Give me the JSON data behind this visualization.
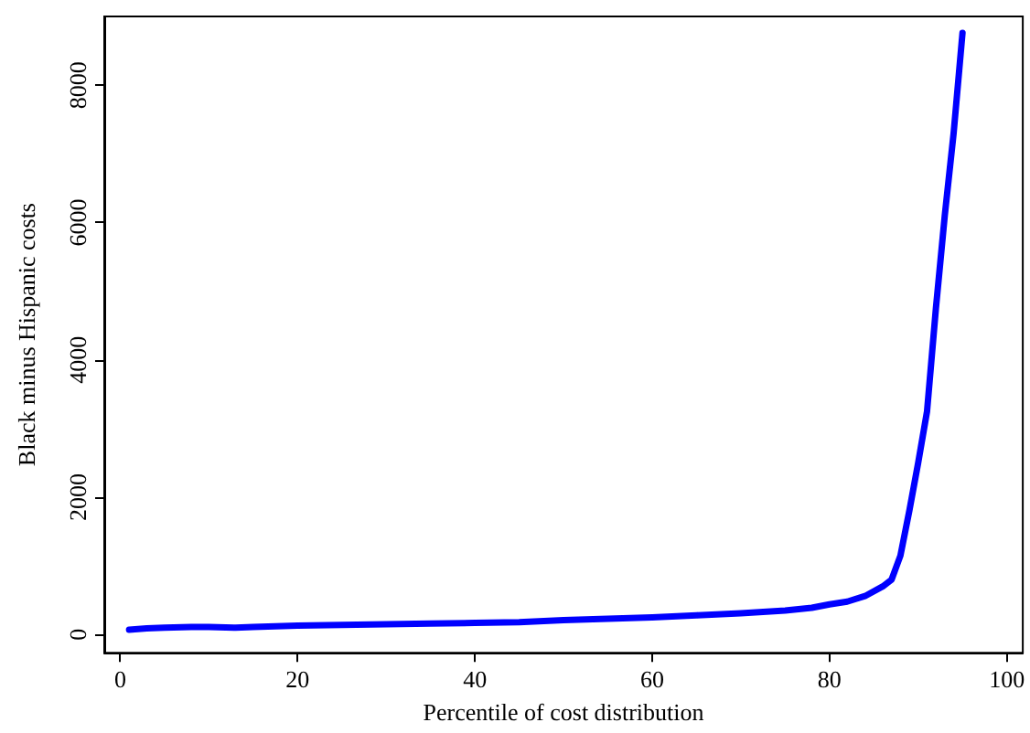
{
  "chart_data": {
    "type": "line",
    "xlabel": "Percentile of cost distribution",
    "ylabel": "Black minus Hispanic costs",
    "x": [
      1,
      3,
      5,
      8,
      10,
      13,
      15,
      20,
      25,
      30,
      35,
      40,
      45,
      50,
      55,
      60,
      65,
      70,
      75,
      78,
      80,
      82,
      84,
      86,
      87,
      88,
      89,
      90,
      91,
      92,
      93,
      94,
      95
    ],
    "series": [
      {
        "color": "#0000ff",
        "values": [
          70,
          90,
          100,
          110,
          110,
          100,
          110,
          130,
          140,
          150,
          160,
          170,
          180,
          210,
          230,
          250,
          280,
          310,
          350,
          390,
          440,
          480,
          560,
          700,
          800,
          1150,
          1800,
          2500,
          3250,
          4750,
          6100,
          7300,
          8760
        ]
      }
    ],
    "xlim": [
      -1.8,
      101.8
    ],
    "xticks": [
      0,
      20,
      40,
      60,
      80,
      100
    ],
    "ylim": [
      -265,
      9000
    ],
    "yticks": [
      0,
      2000,
      4000,
      6000,
      8000
    ],
    "grid": false,
    "marker": "none",
    "line_style": "solid"
  }
}
